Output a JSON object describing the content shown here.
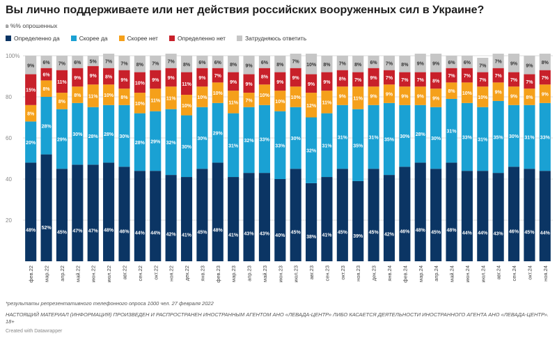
{
  "chart_data": {
    "type": "bar",
    "stacked": true,
    "title": "Вы лично поддерживаете или нет действия российских вооруженных сил в Украине?",
    "subtitle": "в %% опрошенных",
    "ylim": [
      0,
      100
    ],
    "yticks": [
      "100%",
      "80",
      "60",
      "40",
      "20"
    ],
    "grid": true,
    "legend_placement": "top-left",
    "categories": [
      "фев.22",
      "мар.22",
      "апр.22",
      "май.22",
      "июн.22",
      "июл.22",
      "авг.22",
      "сен.22",
      "окт.22",
      "ноя.22",
      "дек.22",
      "янв.23",
      "фев.23",
      "мар.23",
      "апр.23",
      "май.23",
      "июн.23",
      "июл.23",
      "авг.23",
      "сен.23",
      "окт.23",
      "ноя.23",
      "дек.23",
      "янв.24",
      "фев.24",
      "мар.24",
      "апр.24",
      "май.24",
      "июн.24",
      "июл.24",
      "авг.24",
      "сен.24",
      "окт.24",
      "ноя.24"
    ],
    "series": [
      {
        "name": "Определенно да",
        "color": "#0b3564",
        "values": [
          48,
          52,
          45,
          47,
          47,
          48,
          46,
          44,
          44,
          42,
          41,
          45,
          48,
          41,
          43,
          43,
          40,
          45,
          38,
          41,
          45,
          39,
          45,
          42,
          46,
          48,
          45,
          48,
          44,
          44,
          43,
          46,
          45,
          44
        ],
        "labels": [
          "48%",
          "52%",
          "45%",
          "47%",
          "47%",
          "48%",
          "46%",
          "44%",
          "44%",
          "42%",
          "41%",
          "45%",
          "48%",
          "41%",
          "43%",
          "43%",
          "40%",
          "45%",
          "38%",
          "41%",
          "45%",
          "39%",
          "45%",
          "42%",
          "46%",
          "48%",
          "45%",
          "48%",
          "44%",
          "44%",
          "43%",
          "46%",
          "45%",
          "44%"
        ]
      },
      {
        "name": "Скорее да",
        "color": "#1aa1d3",
        "values": [
          20,
          28,
          29,
          30,
          28,
          28,
          30,
          28,
          29,
          32,
          30,
          30,
          29,
          31,
          32,
          33,
          33,
          30,
          32,
          31,
          31,
          35,
          31,
          35,
          30,
          28,
          30,
          31,
          33,
          31,
          35,
          30,
          31,
          33
        ],
        "labels": [
          "20%",
          "28%",
          "29%",
          "30%",
          "28%",
          "28%",
          "30%",
          "28%",
          "29%",
          "32%",
          "30%",
          "30%",
          "29%",
          "31%",
          "32%",
          "33%",
          "33%",
          "30%",
          "32%",
          "31%",
          "31%",
          "35%",
          "31%",
          "35%",
          "30%",
          "28%",
          "30%",
          "31%",
          "33%",
          "31%",
          "35%",
          "30%",
          "31%",
          "33%"
        ]
      },
      {
        "name": "Скорее нет",
        "color": "#f5a01a",
        "values": [
          8,
          8,
          8,
          8,
          11,
          10,
          8,
          10,
          11,
          11,
          10,
          10,
          10,
          11,
          7,
          10,
          10,
          10,
          12,
          11,
          9,
          11,
          9,
          9,
          9,
          9,
          9,
          8,
          10,
          10,
          9,
          9,
          8,
          9
        ],
        "labels": [
          "8%",
          "8%",
          "8%",
          "8%",
          "11%",
          "10%",
          "8%",
          "10%",
          "11%",
          "11%",
          "10%",
          "10%",
          "10%",
          "11%",
          "7%",
          "10%",
          "10%",
          "10%",
          "12%",
          "11%",
          "9%",
          "11%",
          "9%",
          "9%",
          "9%",
          "9%",
          "9%",
          "8%",
          "10%",
          "10%",
          "9%",
          "9%",
          "8%",
          "9%"
        ]
      },
      {
        "name": "Определенно нет",
        "color": "#c8202a",
        "values": [
          15,
          6,
          11,
          9,
          9,
          8,
          9,
          10,
          9,
          9,
          11,
          9,
          7,
          9,
          9,
          8,
          9,
          9,
          9,
          9,
          8,
          7,
          9,
          7,
          7,
          7,
          8,
          7,
          7,
          7,
          7,
          7,
          7,
          7
        ],
        "labels": [
          "15%",
          "6%",
          "11%",
          "9%",
          "9%",
          "8%",
          "9%",
          "10%",
          "9%",
          "9%",
          "11%",
          "9%",
          "7%",
          "9%",
          "9%",
          "8%",
          "9%",
          "9%",
          "9%",
          "9%",
          "8%",
          "7%",
          "9%",
          "7%",
          "7%",
          "7%",
          "8%",
          "7%",
          "7%",
          "7%",
          "7%",
          "7%",
          "7%",
          "7%"
        ]
      },
      {
        "name": "Затрудняюсь ответить",
        "color": "#c6c6c6",
        "values": [
          9,
          6,
          7,
          6,
          5,
          7,
          7,
          8,
          7,
          7,
          8,
          6,
          6,
          8,
          9,
          6,
          8,
          7,
          10,
          8,
          7,
          8,
          6,
          7,
          8,
          9,
          9,
          6,
          6,
          7,
          7,
          9,
          9,
          8
        ],
        "labels": [
          "9%",
          "6%",
          "7%",
          "6%",
          "5%",
          "7%",
          "7%",
          "8%",
          "7%",
          "7%",
          "8%",
          "6%",
          "6%",
          "8%",
          "9%",
          "6%",
          "8%",
          "7%",
          "10%",
          "8%",
          "7%",
          "8%",
          "6%",
          "7%",
          "8%",
          "9%",
          "9%",
          "6%",
          "6%",
          "7%",
          "7%",
          "9%",
          "9%",
          "8%"
        ]
      }
    ]
  },
  "footnote": "*результаты репрезентативного телефонного опроса 1000 чел. 27 февраля 2022",
  "disclaimer": "НАСТОЯЩИЙ МАТЕРИАЛ (ИНФОРМАЦИЯ) ПРОИЗВЕДЕН И РАСПРОСТРАНЕН ИНОСТРАННЫМ АГЕНТОМ АНО «ЛЕВАДА-ЦЕНТР» ЛИБО КАСАЕТСЯ ДЕЯТЕЛЬНОСТИ ИНОСТРАННОГО АГЕНТА АНО «ЛЕВАДА-ЦЕНТР». 18+",
  "credit": "Created with Datawrapper"
}
